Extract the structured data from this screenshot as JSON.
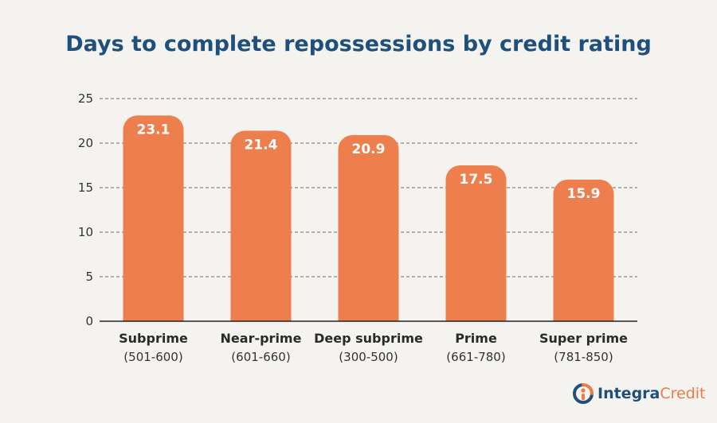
{
  "colors": {
    "bar": "#ed7f4e",
    "title": "#1f4f7c",
    "accent": "#ec7c44"
  },
  "chart_data": {
    "type": "bar",
    "title": "Days to complete repossessions by credit rating",
    "categories": [
      "Subprime",
      "Near-prime",
      "Deep subprime",
      "Prime",
      "Super prime"
    ],
    "category_ranges": [
      "(501-600)",
      "(601-660)",
      "(300-500)",
      "(661-780)",
      "(781-850)"
    ],
    "values": [
      23.1,
      21.4,
      20.9,
      17.5,
      15.9
    ],
    "value_labels": [
      "23.1",
      "21.4",
      "20.9",
      "17.5",
      "15.9"
    ],
    "yticks": [
      "0",
      "5",
      "10",
      "15",
      "20",
      "25"
    ],
    "ylim": [
      0,
      25
    ],
    "grid": true,
    "xlabel": "",
    "ylabel": ""
  },
  "brand": {
    "icon": "integra-logo-icon",
    "name_primary": "Integra",
    "name_secondary": "Credit"
  }
}
